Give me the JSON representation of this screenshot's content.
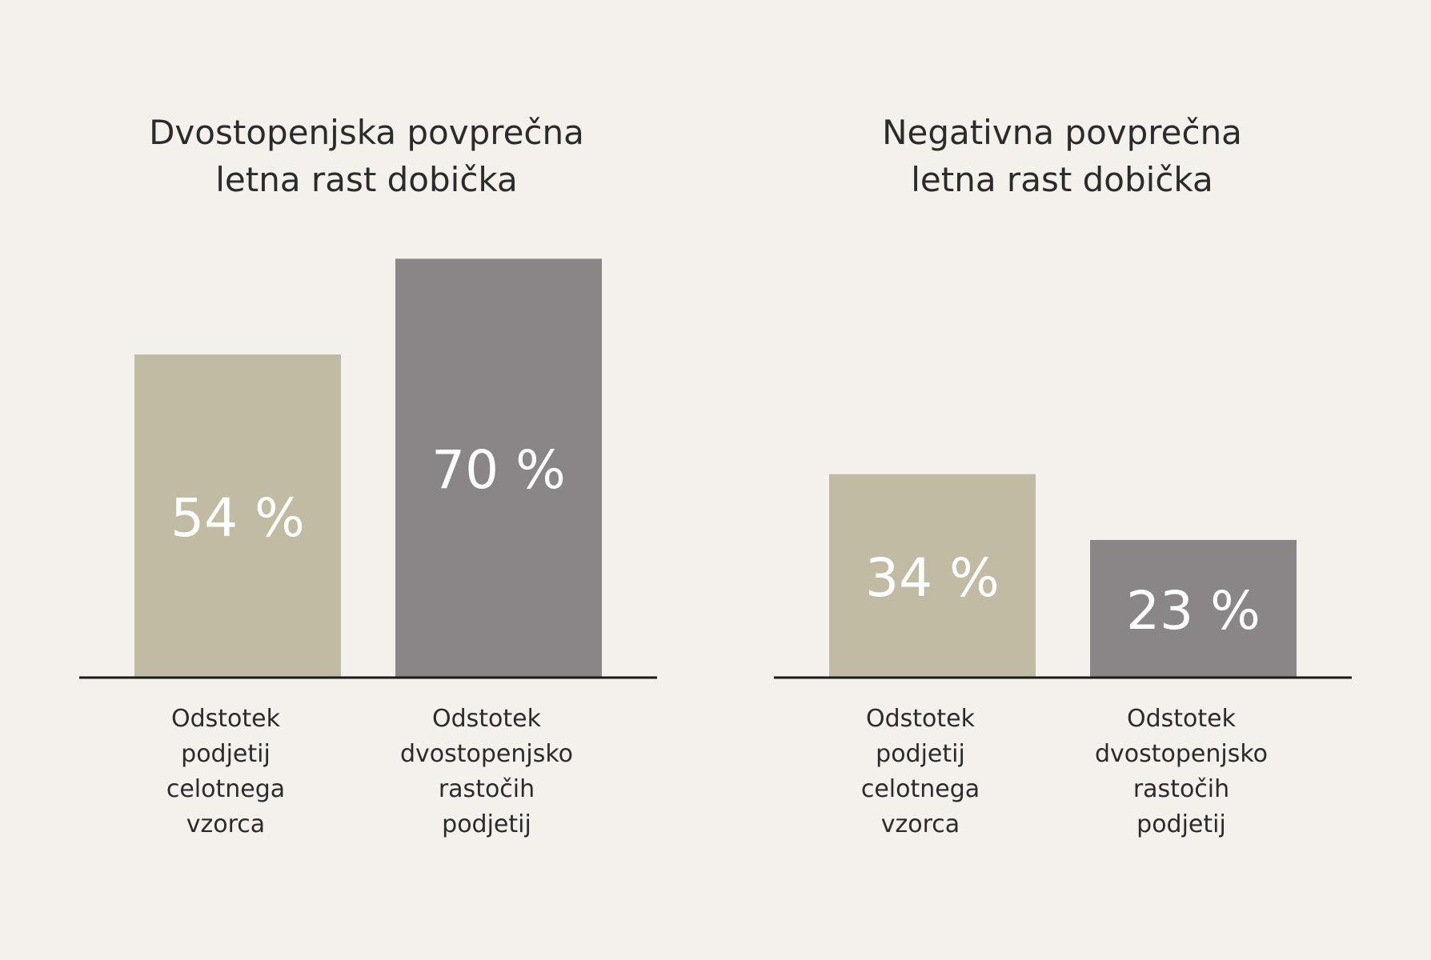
{
  "chart_data": [
    {
      "type": "bar",
      "title": [
        "Dvostopenjska povprečna",
        "letna rast dobička"
      ],
      "categories": [
        [
          "Odstotek",
          "podjetij",
          "celotnega",
          "vzorca"
        ],
        [
          "Odstotek",
          "dvostopenjsko",
          "rastočih",
          "podjetij"
        ]
      ],
      "values": [
        54,
        70
      ],
      "value_labels": [
        "54 %",
        "70 %"
      ],
      "colors": [
        "#c2bba4",
        "#8a8586"
      ],
      "ylim": [
        0,
        70
      ],
      "grid": false,
      "legend": "none"
    },
    {
      "type": "bar",
      "title": [
        "Negativna povprečna",
        "letna rast dobička"
      ],
      "categories": [
        [
          "Odstotek",
          "podjetij",
          "celotnega",
          "vzorca"
        ],
        [
          "Odstotek",
          "dvostopenjsko",
          "rastočih",
          "podjetij"
        ]
      ],
      "values": [
        34,
        23
      ],
      "value_labels": [
        "34 %",
        "23 %"
      ],
      "colors": [
        "#c2bba4",
        "#8a8586"
      ],
      "ylim": [
        0,
        70
      ],
      "grid": false,
      "legend": "none"
    }
  ],
  "colors": {
    "background": "#f4f1ed",
    "text": "#2b2b2b",
    "value_text": "#ffffff",
    "axis": "#1a1a1a"
  }
}
